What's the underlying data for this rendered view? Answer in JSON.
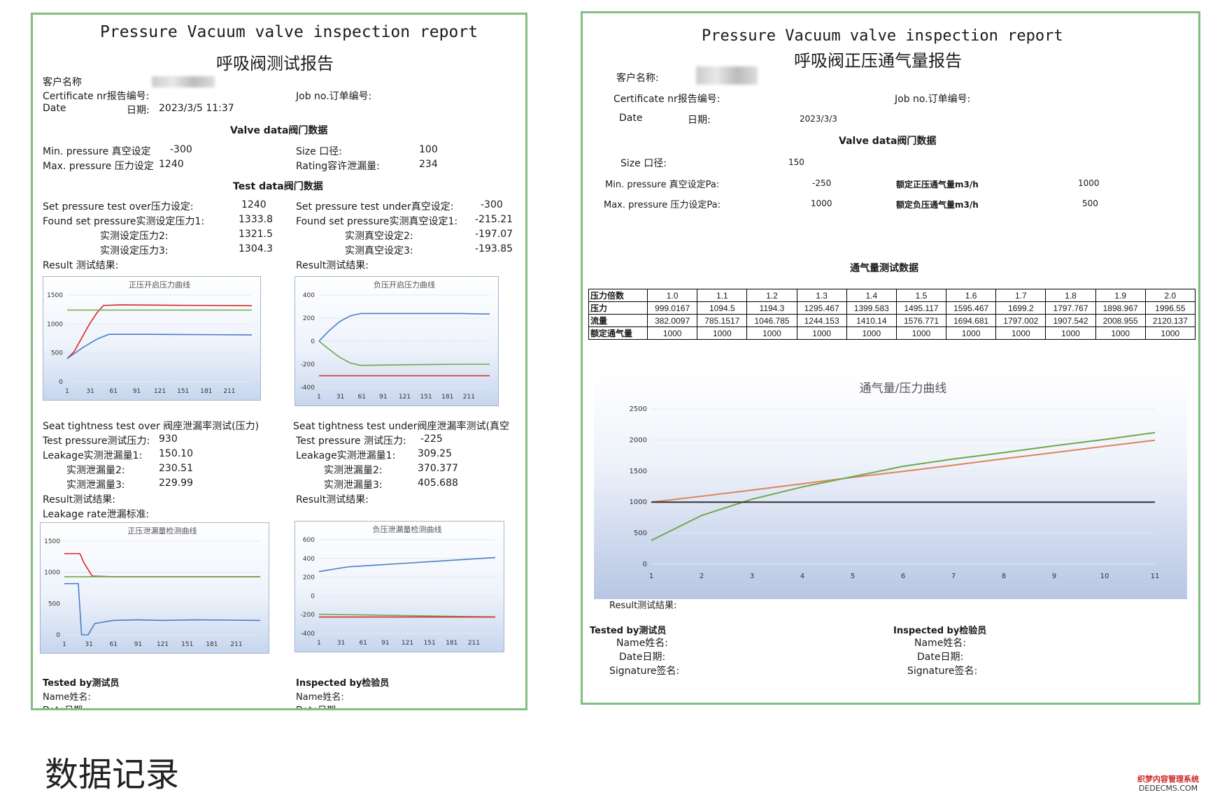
{
  "report1": {
    "title_en": "Pressure Vacuum valve inspection report",
    "title_cn": "呼吸阀测试报告",
    "customer_label": "客户名称",
    "certificate_label": "Certificate nr报告编号:",
    "job_label": "Job no.订单编号:",
    "date_label": "Date",
    "date_cn_label": "日期:",
    "date_value": "2023/3/5 11:37",
    "valve_data_heading": "Valve data阀门数据",
    "min_pressure_label": "Min. pressure 真空设定",
    "min_pressure_value": "-300",
    "max_pressure_label": "Max. pressure 压力设定",
    "max_pressure_value": "1240",
    "size_label": "Size 口径:",
    "size_value": "100",
    "rating_label": "Rating容许泄漏量:",
    "rating_value": "234",
    "test_data_heading": "Test data阀门数据",
    "set_over_label": "Set pressure test over压力设定:",
    "set_over_value": "1240",
    "found_over_label": "Found set pressure实测设定压力1:",
    "found_over_1": "1333.8",
    "found_over_2_label": "实测设定压力2:",
    "found_over_2": "1321.5",
    "found_over_3_label": "实测设定压力3:",
    "found_over_3": "1304.3",
    "set_under_label": "Set pressure test under真空设定:",
    "set_under_value": "-300",
    "found_under_label": "Found set pressure实测真空设定1:",
    "found_under_1": "-215.21",
    "found_under_2_label": "实测真空设定2:",
    "found_under_2": "-197.07",
    "found_under_3_label": "实测真空设定3:",
    "found_under_3": "-193.85",
    "result_left_label": "Result 测试结果:",
    "result_right_label": "Result测试结果:",
    "seat_over_label": "Seat tightness test over 阀座泄漏率测试(压力)",
    "seat_under_label": "Seat tightness test under阀座泄漏率测试(真空",
    "tp_over_label": "Test pressure测试压力:",
    "tp_over_value": "930",
    "tp_under_label": "Test pressure 测试压力:",
    "tp_under_value": "-225",
    "leak_over_label": "Leakage实测泄漏量1:",
    "leak_over_1": "150.10",
    "leak_over_2_label": "实测泄漏量2:",
    "leak_over_2": "230.51",
    "leak_over_3_label": "实测泄漏量3:",
    "leak_over_3": "229.99",
    "leak_under_label": "Leakage实测泄漏量1:",
    "leak_under_1": "309.25",
    "leak_under_2_label": "实测泄漏量2:",
    "leak_under_2": "370.377",
    "leak_under_3_label": "实测泄漏量3:",
    "leak_under_3": "405.688",
    "result2_left_label": "Result测试结果:",
    "result2_right_label": "Result测试结果:",
    "leakage_rate_label": "Leakage rate泄漏标准:",
    "tested_by_label": "Tested by测试员",
    "inspected_by_label": "Inspected by检验员",
    "name_label": "Name姓名:",
    "date_cut_label": "Date日期:"
  },
  "report2": {
    "title_en": "Pressure Vacuum valve inspection report",
    "title_cn": "呼吸阀正压通气量报告",
    "customer_label": "客户名称:",
    "certificate_label": "Certificate nr报告编号:",
    "job_label": "Job no.订单编号:",
    "date_label": "Date",
    "date_cn_label": "日期:",
    "date_value": "2023/3/3",
    "valve_data_heading": "Valve data阀门数据",
    "size_label": "Size 口径:",
    "size_value": "150",
    "min_pressure_label": "Min. pressure 真空设定Pa:",
    "min_pressure_value": "-250",
    "max_pressure_label": "Max. pressure 压力设定Pa:",
    "max_pressure_value": "1000",
    "rated_pos_label": "额定正压通气量m3/h",
    "rated_pos_value": "1000",
    "rated_neg_label": "额定负压通气量m3/h",
    "rated_neg_value": "500",
    "flow_heading": "通气量测试数据",
    "table": {
      "row_labels": [
        "压力倍数",
        "压力",
        "流量",
        "额定通气量"
      ],
      "multiples": [
        "1.0",
        "1.1",
        "1.2",
        "1.3",
        "1.4",
        "1.5",
        "1.6",
        "1.7",
        "1.8",
        "1.9",
        "2.0"
      ],
      "pressure": [
        "999.0167",
        "1094.5",
        "1194.3",
        "1295.467",
        "1399.583",
        "1495.117",
        "1595.467",
        "1699.2",
        "1797.767",
        "1898.967",
        "1996.55"
      ],
      "flow": [
        "382.0097",
        "785.1517",
        "1046.785",
        "1244.153",
        "1410.14",
        "1576.771",
        "1694.681",
        "1797.002",
        "1907.542",
        "2008.955",
        "2120.137"
      ],
      "rated": [
        "1000",
        "1000",
        "1000",
        "1000",
        "1000",
        "1000",
        "1000",
        "1000",
        "1000",
        "1000",
        "1000"
      ]
    },
    "result_label": "Result测试结果:",
    "tested_by_label": "Tested by测试员",
    "inspected_by_label": "Inspected by检验员",
    "name_label": "Name姓名:",
    "date_label2": "Date日期:",
    "signature_label": "Signature签名:"
  },
  "caption": "数据记录",
  "watermark": {
    "line1": "织梦内容管理系统",
    "line2": "DEDECMS.COM"
  },
  "chart_data": [
    {
      "type": "line",
      "title": "正压开启压力曲线",
      "x_ticks": [
        "1",
        "31",
        "61",
        "91",
        "121",
        "151",
        "181",
        "211"
      ],
      "ylim": [
        0,
        1500
      ],
      "y_ticks": [
        "0",
        "500",
        "1000",
        "1500"
      ],
      "series": [
        {
          "color": "#d62728",
          "points": [
            [
              1,
              400
            ],
            [
              10,
              520
            ],
            [
              20,
              760
            ],
            [
              30,
              1000
            ],
            [
              40,
              1200
            ],
            [
              48,
              1320
            ],
            [
              70,
              1330
            ],
            [
              120,
              1325
            ],
            [
              180,
              1320
            ],
            [
              240,
              1315
            ]
          ]
        },
        {
          "color": "#6fa84d",
          "points": [
            [
              1,
              1240
            ],
            [
              240,
              1240
            ]
          ]
        },
        {
          "color": "#4a7ec2",
          "points": [
            [
              1,
              400
            ],
            [
              20,
              580
            ],
            [
              40,
              740
            ],
            [
              55,
              820
            ],
            [
              100,
              820
            ],
            [
              180,
              815
            ],
            [
              240,
              810
            ]
          ]
        }
      ]
    },
    {
      "type": "line",
      "title": "负压开启压力曲线",
      "x_ticks": [
        "1",
        "31",
        "61",
        "91",
        "121",
        "151",
        "181",
        "211"
      ],
      "ylim": [
        -400,
        400
      ],
      "y_ticks": [
        "-400",
        "-200",
        "0",
        "200",
        "400"
      ],
      "series": [
        {
          "color": "#4a7ec2",
          "points": [
            [
              1,
              0
            ],
            [
              15,
              90
            ],
            [
              30,
              170
            ],
            [
              45,
              220
            ],
            [
              60,
              240
            ],
            [
              120,
              240
            ],
            [
              200,
              240
            ],
            [
              240,
              235
            ]
          ]
        },
        {
          "color": "#6fa84d",
          "points": [
            [
              1,
              0
            ],
            [
              15,
              -70
            ],
            [
              30,
              -140
            ],
            [
              45,
              -190
            ],
            [
              60,
              -210
            ],
            [
              120,
              -205
            ],
            [
              200,
              -200
            ],
            [
              240,
              -200
            ]
          ]
        },
        {
          "color": "#d62728",
          "points": [
            [
              1,
              -300
            ],
            [
              240,
              -300
            ]
          ]
        }
      ]
    },
    {
      "type": "line",
      "title": "正压泄漏量检测曲线",
      "x_ticks": [
        "1",
        "31",
        "61",
        "91",
        "121",
        "151",
        "181",
        "211"
      ],
      "ylim": [
        0,
        1500
      ],
      "y_ticks": [
        "0",
        "500",
        "1000",
        "1500"
      ],
      "series": [
        {
          "color": "#d62728",
          "points": [
            [
              1,
              1300
            ],
            [
              20,
              1300
            ],
            [
              25,
              1150
            ],
            [
              35,
              940
            ],
            [
              60,
              930
            ],
            [
              120,
              930
            ],
            [
              180,
              930
            ],
            [
              240,
              930
            ]
          ]
        },
        {
          "color": "#6fa84d",
          "points": [
            [
              1,
              930
            ],
            [
              240,
              930
            ]
          ]
        },
        {
          "color": "#4a7ec2",
          "points": [
            [
              1,
              820
            ],
            [
              18,
              820
            ],
            [
              22,
              0
            ],
            [
              30,
              0
            ],
            [
              38,
              180
            ],
            [
              60,
              230
            ],
            [
              90,
              240
            ],
            [
              120,
              230
            ],
            [
              160,
              240
            ],
            [
              200,
              235
            ],
            [
              240,
              230
            ]
          ]
        }
      ]
    },
    {
      "type": "line",
      "title": "负压泄漏量检测曲线",
      "x_ticks": [
        "1",
        "31",
        "61",
        "91",
        "121",
        "151",
        "181",
        "211"
      ],
      "ylim": [
        -400,
        600
      ],
      "y_ticks": [
        "-400",
        "-200",
        "0",
        "200",
        "400",
        "600"
      ],
      "series": [
        {
          "color": "#4a7ec2",
          "points": [
            [
              1,
              260
            ],
            [
              40,
              310
            ],
            [
              80,
              330
            ],
            [
              120,
              350
            ],
            [
              160,
              370
            ],
            [
              200,
              390
            ],
            [
              240,
              410
            ]
          ]
        },
        {
          "color": "#6fa84d",
          "points": [
            [
              1,
              -195
            ],
            [
              240,
              -225
            ]
          ]
        },
        {
          "color": "#d62728",
          "points": [
            [
              1,
              -225
            ],
            [
              240,
              -225
            ]
          ]
        }
      ]
    },
    {
      "type": "line",
      "title": "通气量/压力曲线",
      "categories": [
        "1",
        "2",
        "3",
        "4",
        "5",
        "6",
        "7",
        "8",
        "9",
        "10",
        "11"
      ],
      "ylim": [
        0,
        2500
      ],
      "y_ticks": [
        "0",
        "500",
        "1000",
        "1500",
        "2000",
        "2500"
      ],
      "series": [
        {
          "color": "#e0825a",
          "values": [
            999.0167,
            1094.5,
            1194.3,
            1295.467,
            1399.583,
            1495.117,
            1595.467,
            1699.2,
            1797.767,
            1898.967,
            1996.55
          ]
        },
        {
          "color": "#6fa84d",
          "values": [
            382.0097,
            785.1517,
            1046.785,
            1244.153,
            1410.14,
            1576.771,
            1694.681,
            1797.002,
            1907.542,
            2008.955,
            2120.137
          ]
        },
        {
          "color": "#333333",
          "values": [
            1000,
            1000,
            1000,
            1000,
            1000,
            1000,
            1000,
            1000,
            1000,
            1000,
            1000
          ]
        }
      ]
    }
  ]
}
